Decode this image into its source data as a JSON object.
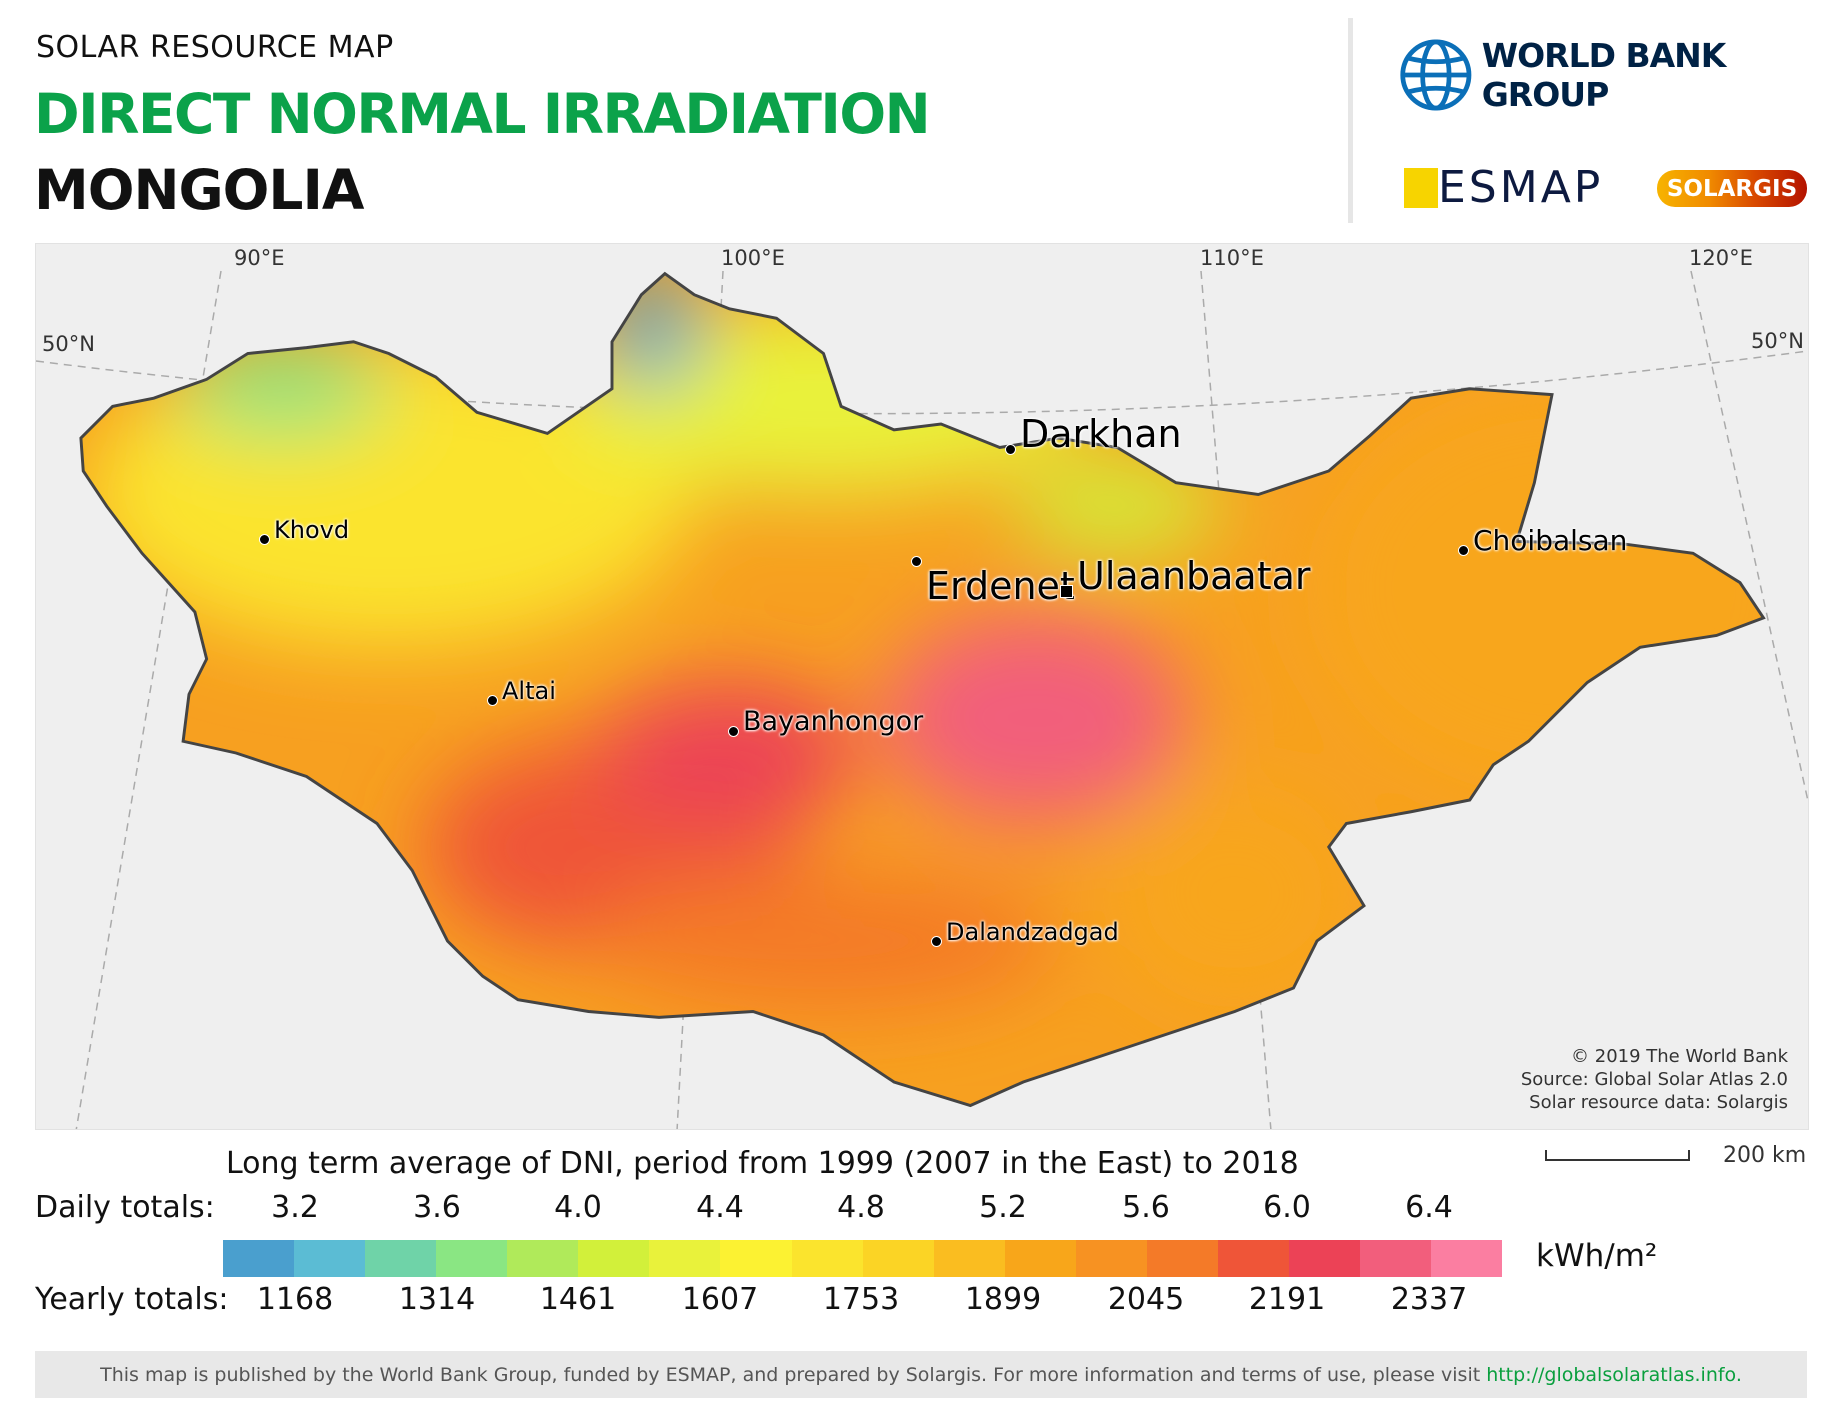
{
  "header": {
    "subtitle": "SOLAR RESOURCE MAP",
    "title": "DIRECT NORMAL IRRADIATION",
    "country": "MONGOLIA",
    "title_color": "#0ba24a"
  },
  "logos": {
    "world_bank": "WORLD BANK GROUP",
    "esmap": "ESMAP",
    "solargis": "SOLARGIS"
  },
  "map": {
    "graticule": {
      "longitudes": [
        "90°E",
        "100°E",
        "110°E",
        "120°E"
      ],
      "latitudes": [
        "50°N",
        "50°N"
      ]
    },
    "cities": [
      {
        "name": "Darkhan",
        "type": "city"
      },
      {
        "name": "Erdenet",
        "type": "city"
      },
      {
        "name": "Ulaanbaatar",
        "type": "capital"
      },
      {
        "name": "Khovd",
        "type": "town"
      },
      {
        "name": "Choibalsan",
        "type": "town"
      },
      {
        "name": "Altai",
        "type": "town"
      },
      {
        "name": "Bayanhongor",
        "type": "town"
      },
      {
        "name": "Dalandzadgad",
        "type": "town"
      }
    ],
    "credits": [
      "© 2019 The World Bank",
      "Source: Global Solar Atlas 2.0",
      "Solar resource data: Solargis"
    ],
    "scale_label": "200 km"
  },
  "legend": {
    "title": "Long term average of DNI, period from 1999 (2007 in the East) to 2018",
    "daily_label": "Daily totals:",
    "daily_values": [
      "3.2",
      "3.6",
      "4.0",
      "4.4",
      "4.8",
      "5.2",
      "5.6",
      "6.0",
      "6.4"
    ],
    "yearly_label": "Yearly totals:",
    "yearly_values": [
      "1168",
      "1314",
      "1461",
      "1607",
      "1753",
      "1899",
      "2045",
      "2191",
      "2337"
    ],
    "unit": "kWh/m²",
    "colors": [
      "#4a9fce",
      "#5bbcd4",
      "#6fd3a8",
      "#8ae683",
      "#b0ea5a",
      "#d2f03a",
      "#e9f23b",
      "#fcf232",
      "#fbe42d",
      "#fbd425",
      "#fabd20",
      "#f8a61a",
      "#f79222",
      "#f47a28",
      "#ef5538",
      "#ec4256",
      "#f25e7c",
      "#fb7ea1"
    ]
  },
  "footer": {
    "text": "This map is published by the World Bank Group, funded by ESMAP, and prepared by Solargis. For more information and terms of use, please visit",
    "link": "http://globalsolaratlas.info."
  }
}
